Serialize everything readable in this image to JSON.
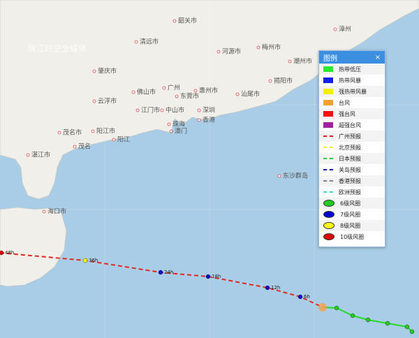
{
  "map": {
    "watermark": "珠江时空全媒体",
    "labels": [
      "韶关市",
      "清远市",
      "河源市",
      "梅州市",
      "潮州市",
      "揭阳市",
      "肇庆市",
      "广州",
      "佛山市",
      "东莞市",
      "惠州市",
      "汕尾市",
      "云浮市",
      "江门市",
      "中山市",
      "深圳",
      "珠海",
      "香港",
      "澳门",
      "茂名市",
      "阳江市",
      "湛江市",
      "茂名",
      "阳江",
      "海口市",
      "东沙群岛",
      "漳州"
    ]
  },
  "legend": {
    "title": "图例",
    "close": "×",
    "items": [
      "热带低压",
      "热带风暴",
      "强热带风暴",
      "台风",
      "强台风",
      "超强台风",
      "广州预报",
      "北京预报",
      "日本预报",
      "关岛预报",
      "香港预报",
      "欧洲预报",
      "6级风圈",
      "7级风圈",
      "8级风圈",
      "10级风圈"
    ]
  },
  "track": {
    "labels": [
      "48h",
      "36h",
      "24h",
      "18h",
      "12h",
      "6h"
    ]
  }
}
